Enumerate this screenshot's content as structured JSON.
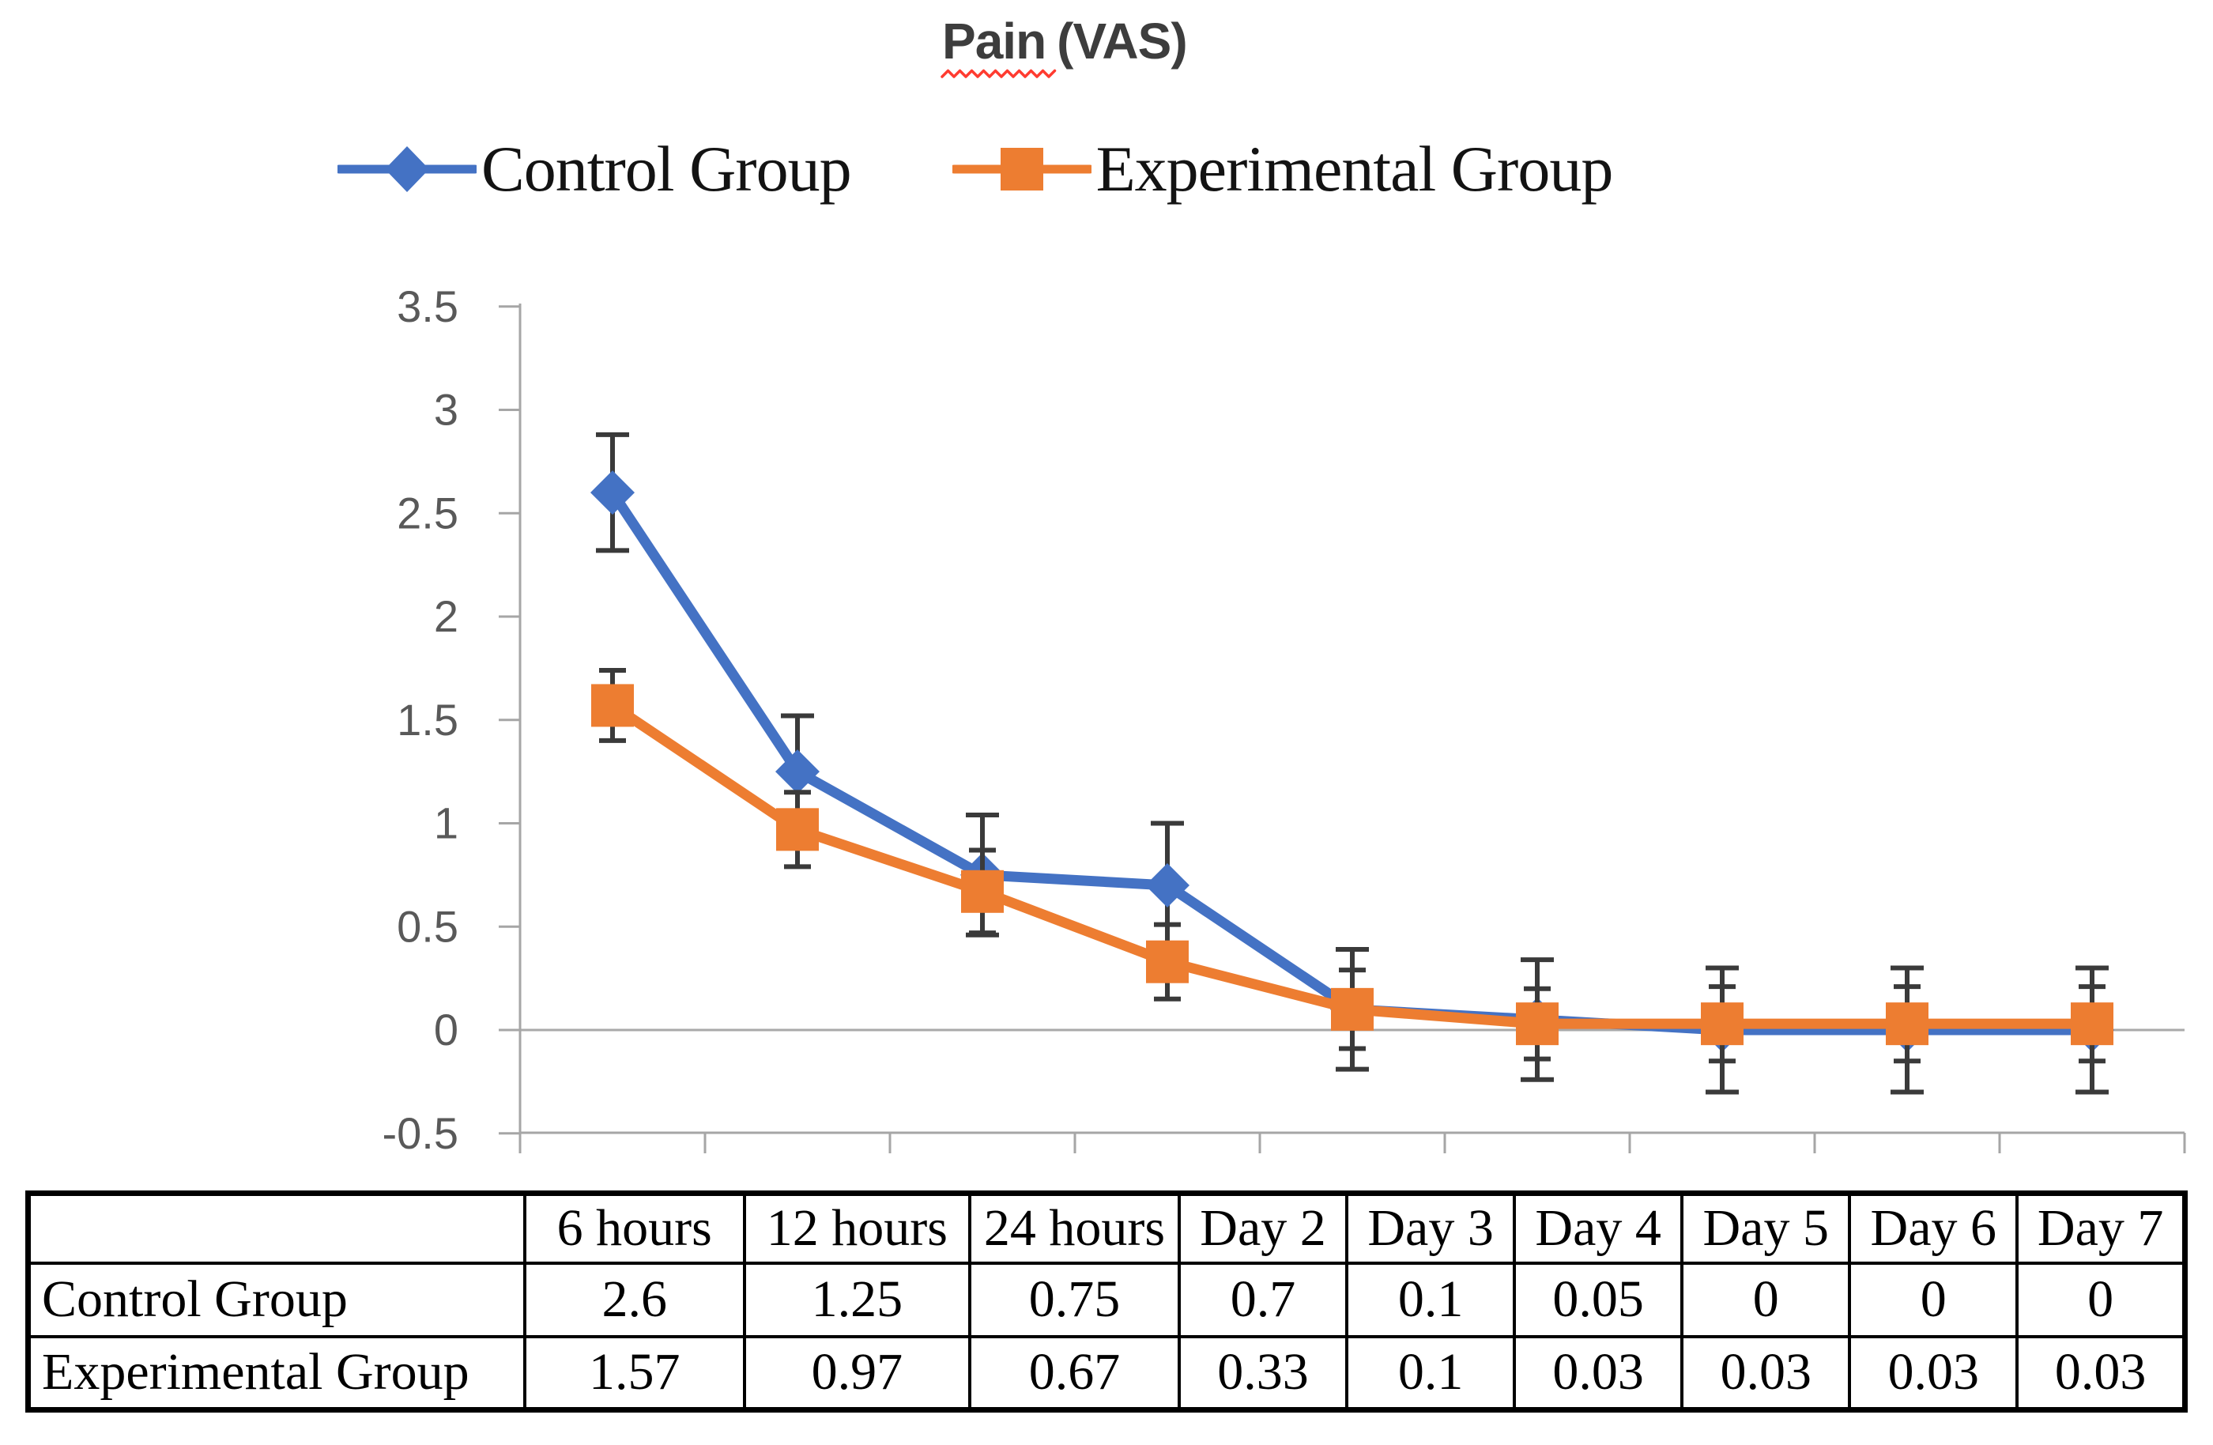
{
  "title": {
    "underlined_part": "Pain",
    "rest": "(VAS)",
    "full_text": "Pain (VAS)"
  },
  "chart_data": {
    "type": "line",
    "title": "Pain (VAS)",
    "categories": [
      "6 hours",
      "12 hours",
      "24 hours",
      "Day 2",
      "Day 3",
      "Day 4",
      "Day 5",
      "Day 6",
      "Day 7"
    ],
    "series": [
      {
        "name": "Control Group",
        "color": "#4472C4",
        "marker": "diamond",
        "values": [
          2.6,
          1.25,
          0.75,
          0.7,
          0.1,
          0.05,
          0,
          0,
          0
        ],
        "error_bars": [
          0.28,
          0.27,
          0.29,
          0.3,
          0.29,
          0.29,
          0.3,
          0.3,
          0.3
        ]
      },
      {
        "name": "Experimental Group",
        "color": "#ED7D31",
        "marker": "square",
        "values": [
          1.57,
          0.97,
          0.67,
          0.33,
          0.1,
          0.03,
          0.03,
          0.03,
          0.03
        ],
        "error_bars": [
          0.17,
          0.18,
          0.2,
          0.18,
          0.19,
          0.17,
          0.18,
          0.18,
          0.18
        ]
      }
    ],
    "ylim": [
      -0.5,
      3.5
    ],
    "y_ticks": [
      "3.5",
      "3",
      "2.5",
      "2",
      "1.5",
      "1",
      "0.5",
      "0",
      "-0.5"
    ],
    "zero_gridline": true,
    "x_ticks_between_categories": true,
    "legend_position": "top",
    "grid": "off"
  },
  "table": {
    "corner_label": "",
    "header": [
      "6 hours",
      "12 hours",
      "24 hours",
      "Day 2",
      "Day 3",
      "Day 4",
      "Day 5",
      "Day 6",
      "Day 7"
    ],
    "rows": [
      {
        "label": "Control Group",
        "values": [
          "2.6",
          "1.25",
          "0.75",
          "0.7",
          "0.1",
          "0.05",
          "0",
          "0",
          "0"
        ]
      },
      {
        "label": "Experimental Group",
        "values": [
          "1.57",
          "0.97",
          "0.67",
          "0.33",
          "0.1",
          "0.03",
          "0.03",
          "0.03",
          "0.03"
        ]
      }
    ]
  },
  "colors": {
    "control": "#4472C4",
    "experimental": "#ED7D31",
    "axis": "#A6A6A6",
    "zero_line": "#A9A9A9",
    "error_bar": "#3A3A3A",
    "tick_label": "#595959",
    "title_text": "#3D3D3D",
    "squiggle": "#FF3B30",
    "table_border": "#000000"
  }
}
